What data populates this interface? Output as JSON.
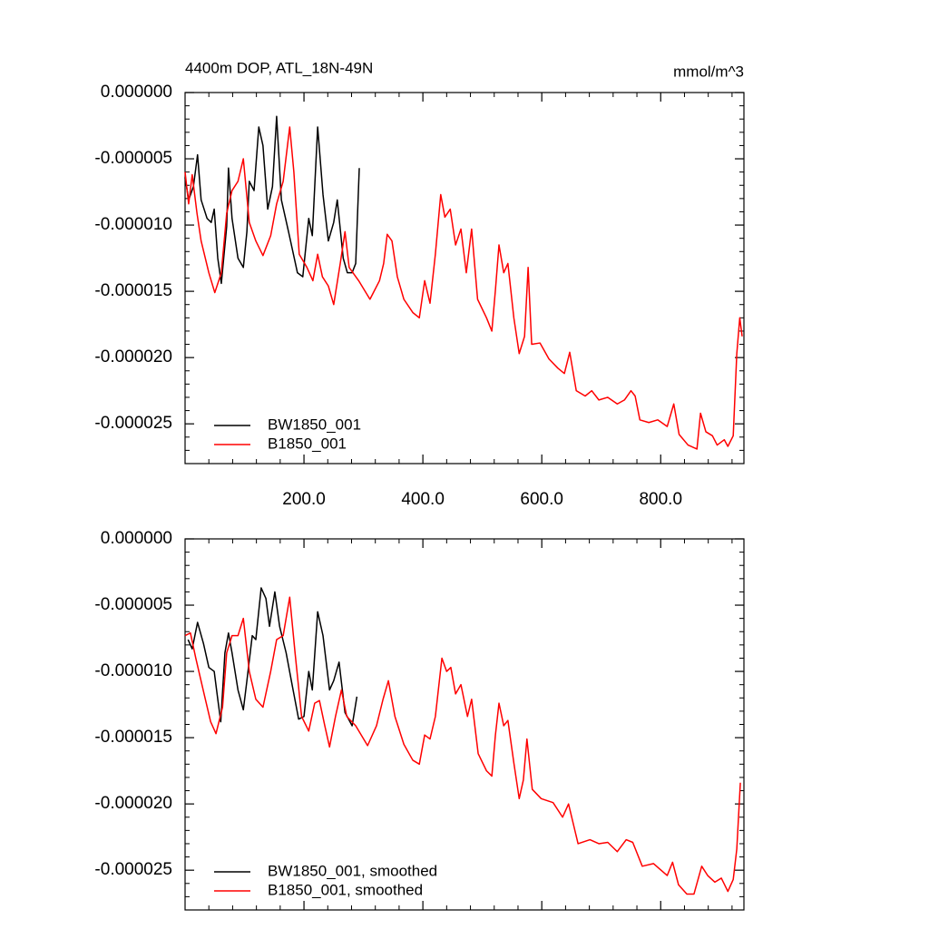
{
  "chart_data": [
    {
      "type": "line",
      "title": "4400m DOP, ATL_18N-49N",
      "units": "mmol/m^3",
      "xlim": [
        0,
        940
      ],
      "ylim": [
        -2.8e-05,
        0
      ],
      "xticks": [
        {
          "value": 200,
          "label": "200.0"
        },
        {
          "value": 400,
          "label": "400.0"
        },
        {
          "value": 600,
          "label": "600.0"
        },
        {
          "value": 800,
          "label": "800.0"
        }
      ],
      "yticks": [
        {
          "value": 0,
          "label": "0.000000"
        },
        {
          "value": -5e-06,
          "label": "-0.000005"
        },
        {
          "value": -1e-05,
          "label": "-0.000010"
        },
        {
          "value": -1.5e-05,
          "label": "-0.000015"
        },
        {
          "value": -2e-05,
          "label": "-0.000020"
        },
        {
          "value": -2.5e-05,
          "label": "-0.000025"
        }
      ],
      "show_xtick_labels": true,
      "minor_ticks": true,
      "legend": "lower-left",
      "series": [
        {
          "name": "BW1850_001",
          "color": "#000000",
          "x": [
            0,
            6,
            14,
            21,
            27,
            37,
            44,
            49,
            55,
            61,
            70,
            73,
            79,
            89,
            98,
            104,
            108,
            116,
            124,
            131,
            139,
            147,
            154,
            162,
            174,
            189,
            198,
            208,
            214,
            223,
            232,
            241,
            250,
            256,
            266,
            273,
            281,
            287,
            293
          ],
          "values": [
            -6.4e-06,
            -8.1e-06,
            -7.1e-06,
            -4.7e-06,
            -8.1e-06,
            -9.5e-06,
            -9.8e-06,
            -8.8e-06,
            -1.25e-05,
            -1.44e-05,
            -1.01e-05,
            -5.7e-06,
            -9.5e-06,
            -1.25e-05,
            -1.32e-05,
            -1.05e-05,
            -6.7e-06,
            -7.4e-06,
            -2.6e-06,
            -4e-06,
            -8.8e-06,
            -7.1e-06,
            -1.8e-06,
            -8.1e-06,
            -1.05e-05,
            -1.36e-05,
            -1.39e-05,
            -9.5e-06,
            -1.08e-05,
            -2.6e-06,
            -7.7e-06,
            -1.12e-05,
            -9.8e-06,
            -8.1e-06,
            -1.25e-05,
            -1.36e-05,
            -1.36e-05,
            -1.29e-05,
            -5.7e-06
          ]
        },
        {
          "name": "B1850_001",
          "color": "#ff0000",
          "x": [
            0,
            6,
            12,
            20,
            27,
            40,
            50,
            61,
            70,
            79,
            89,
            98,
            108,
            119,
            131,
            144,
            154,
            165,
            176,
            183,
            192,
            205,
            215,
            223,
            231,
            241,
            250,
            261,
            269,
            276,
            292,
            311,
            327,
            334,
            340,
            348,
            357,
            368,
            383,
            394,
            403,
            412,
            421,
            430,
            437,
            446,
            455,
            464,
            473,
            482,
            492,
            507,
            516,
            522,
            528,
            536,
            543,
            553,
            562,
            571,
            577,
            583,
            597,
            612,
            627,
            638,
            647,
            658,
            673,
            684,
            696,
            711,
            727,
            739,
            750,
            757,
            765,
            780,
            795,
            811,
            822,
            831,
            846,
            861,
            867,
            876,
            887,
            895,
            907,
            913,
            922,
            928,
            933,
            937
          ],
          "values": [
            -6e-06,
            -8.4e-06,
            -6.2e-06,
            -9.1e-06,
            -1.12e-05,
            -1.36e-05,
            -1.51e-05,
            -1.36e-05,
            -9.1e-06,
            -7.4e-06,
            -6.7e-06,
            -5e-06,
            -9.8e-06,
            -1.12e-05,
            -1.23e-05,
            -1.08e-05,
            -8.4e-06,
            -6.7e-06,
            -2.6e-06,
            -6e-06,
            -1.22e-05,
            -1.32e-05,
            -1.42e-05,
            -1.22e-05,
            -1.39e-05,
            -1.46e-05,
            -1.6e-05,
            -1.29e-05,
            -1.05e-05,
            -1.32e-05,
            -1.42e-05,
            -1.56e-05,
            -1.42e-05,
            -1.29e-05,
            -1.07e-05,
            -1.12e-05,
            -1.39e-05,
            -1.56e-05,
            -1.66e-05,
            -1.7e-05,
            -1.42e-05,
            -1.59e-05,
            -1.22e-05,
            -7.7e-06,
            -9.4e-06,
            -8.8e-06,
            -1.15e-05,
            -1.03e-05,
            -1.36e-05,
            -1.03e-05,
            -1.56e-05,
            -1.7e-05,
            -1.8e-05,
            -1.49e-05,
            -1.15e-05,
            -1.36e-05,
            -1.29e-05,
            -1.7e-05,
            -1.97e-05,
            -1.84e-05,
            -1.32e-05,
            -1.9e-05,
            -1.89e-05,
            -2.01e-05,
            -2.08e-05,
            -2.12e-05,
            -1.96e-05,
            -2.25e-05,
            -2.29e-05,
            -2.25e-05,
            -2.32e-05,
            -2.3e-05,
            -2.35e-05,
            -2.32e-05,
            -2.25e-05,
            -2.29e-05,
            -2.47e-05,
            -2.49e-05,
            -2.47e-05,
            -2.52e-05,
            -2.35e-05,
            -2.58e-05,
            -2.66e-05,
            -2.69e-05,
            -2.42e-05,
            -2.56e-05,
            -2.59e-05,
            -2.66e-05,
            -2.62e-05,
            -2.67e-05,
            -2.59e-05,
            -1.97e-05,
            -1.7e-05,
            -1.84e-05
          ]
        }
      ]
    },
    {
      "type": "line",
      "xlim": [
        0,
        940
      ],
      "ylim": [
        -2.8e-05,
        0
      ],
      "xticks": [
        200,
        400,
        600,
        800
      ],
      "yticks": [
        {
          "value": 0,
          "label": "0.000000"
        },
        {
          "value": -5e-06,
          "label": "-0.000005"
        },
        {
          "value": -1e-05,
          "label": "-0.000010"
        },
        {
          "value": -1.5e-05,
          "label": "-0.000015"
        },
        {
          "value": -2e-05,
          "label": "-0.000020"
        },
        {
          "value": -2.5e-05,
          "label": "-0.000025"
        }
      ],
      "show_xtick_labels": false,
      "minor_ticks": true,
      "legend": "lower-left",
      "series": [
        {
          "name": "BW1850_001, smoothed",
          "color": "#000000",
          "x": [
            5,
            12,
            21,
            31,
            40,
            49,
            55,
            60,
            67,
            73,
            79,
            89,
            98,
            104,
            113,
            119,
            128,
            136,
            142,
            151,
            159,
            170,
            180,
            191,
            200,
            208,
            214,
            223,
            232,
            243,
            250,
            259,
            269,
            281,
            289
          ],
          "values": [
            -7.6e-06,
            -8.3e-06,
            -6.3e-06,
            -7.9e-06,
            -9.7e-06,
            -1e-05,
            -1.21e-05,
            -1.38e-05,
            -8.6e-06,
            -7.1e-06,
            -8.6e-06,
            -1.14e-05,
            -1.29e-05,
            -1.07e-05,
            -7.3e-06,
            -7.6e-06,
            -3.7e-06,
            -4.5e-06,
            -6.6e-06,
            -4e-06,
            -6.6e-06,
            -8.6e-06,
            -1.1e-05,
            -1.36e-05,
            -1.34e-05,
            -1e-05,
            -1.14e-05,
            -5.5e-06,
            -7.3e-06,
            -1.14e-05,
            -1.07e-05,
            -9.3e-06,
            -1.31e-05,
            -1.41e-05,
            -1.19e-05
          ]
        },
        {
          "name": "B1850_001, smoothed",
          "color": "#ff0000",
          "x": [
            0,
            9,
            18,
            32,
            43,
            52,
            63,
            70,
            79,
            89,
            98,
            108,
            119,
            131,
            144,
            154,
            165,
            176,
            185,
            196,
            208,
            218,
            226,
            235,
            243,
            253,
            263,
            272,
            287,
            307,
            322,
            333,
            342,
            353,
            368,
            383,
            394,
            403,
            412,
            421,
            432,
            440,
            447,
            455,
            464,
            475,
            482,
            493,
            507,
            516,
            522,
            528,
            536,
            543,
            553,
            562,
            569,
            575,
            584,
            599,
            619,
            635,
            645,
            661,
            681,
            696,
            711,
            727,
            742,
            753,
            769,
            788,
            798,
            811,
            820,
            830,
            844,
            856,
            869,
            879,
            891,
            902,
            913,
            922,
            928,
            934
          ],
          "values": [
            -7.3e-06,
            -7.1e-06,
            -9e-06,
            -1.17e-05,
            -1.38e-05,
            -1.47e-05,
            -1.27e-05,
            -8.6e-06,
            -7.3e-06,
            -7.3e-06,
            -6e-06,
            -1e-05,
            -1.21e-05,
            -1.27e-05,
            -1e-05,
            -7.6e-06,
            -7.3e-06,
            -4.4e-06,
            -8.6e-06,
            -1.34e-05,
            -1.45e-05,
            -1.24e-05,
            -1.22e-05,
            -1.41e-05,
            -1.57e-05,
            -1.34e-05,
            -1.14e-05,
            -1.34e-05,
            -1.41e-05,
            -1.56e-05,
            -1.41e-05,
            -1.21e-05,
            -1.07e-05,
            -1.34e-05,
            -1.55e-05,
            -1.67e-05,
            -1.7e-05,
            -1.48e-05,
            -1.51e-05,
            -1.34e-05,
            -9e-06,
            -1e-05,
            -9.7e-06,
            -1.17e-05,
            -1.1e-05,
            -1.34e-05,
            -1.21e-05,
            -1.62e-05,
            -1.75e-05,
            -1.79e-05,
            -1.48e-05,
            -1.24e-05,
            -1.41e-05,
            -1.37e-05,
            -1.69e-05,
            -1.96e-05,
            -1.82e-05,
            -1.51e-05,
            -1.89e-05,
            -1.96e-05,
            -1.99e-05,
            -2.1e-05,
            -2e-05,
            -2.3e-05,
            -2.27e-05,
            -2.3e-05,
            -2.29e-05,
            -2.36e-05,
            -2.27e-05,
            -2.29e-05,
            -2.47e-05,
            -2.45e-05,
            -2.49e-05,
            -2.54e-05,
            -2.44e-05,
            -2.61e-05,
            -2.68e-05,
            -2.68e-05,
            -2.47e-05,
            -2.54e-05,
            -2.59e-05,
            -2.56e-05,
            -2.66e-05,
            -2.57e-05,
            -2.34e-05,
            -1.84e-05
          ]
        }
      ]
    }
  ]
}
